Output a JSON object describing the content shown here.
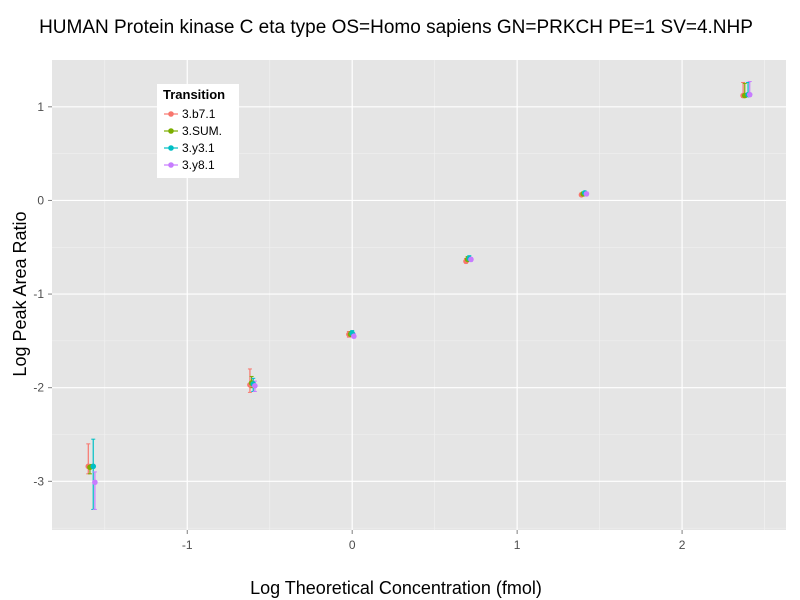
{
  "chart_data": {
    "type": "scatter",
    "title": "HUMAN Protein kinase C eta type OS=Homo sapiens GN=PRKCH PE=1 SV=4.NHP",
    "xlabel": "Log Theoretical Concentration (fmol)",
    "ylabel": "Log Peak Area Ratio",
    "xlim": [
      -1.82,
      2.63
    ],
    "ylim": [
      -3.52,
      1.5
    ],
    "x_ticks": [
      -1,
      0,
      1,
      2
    ],
    "y_ticks": [
      -3,
      -2,
      -1,
      0,
      1
    ],
    "x_tick_labels": [
      "-1",
      "0",
      "1",
      "2"
    ],
    "y_tick_labels": [
      "-3",
      "-2",
      "-1",
      "0",
      "1"
    ],
    "grid": true,
    "error_bars": true,
    "legend": {
      "title": "Transition",
      "position": "top-left"
    },
    "series": [
      {
        "name": "3.b7.1",
        "color": "#F8766D",
        "points": [
          {
            "x": -1.6,
            "y": -2.84,
            "lo": -2.92,
            "hi": -2.6
          },
          {
            "x": -0.62,
            "y": -1.97,
            "lo": -2.05,
            "hi": -1.8
          },
          {
            "x": -0.02,
            "y": -1.43,
            "lo": -1.46,
            "hi": -1.4
          },
          {
            "x": 0.69,
            "y": -0.65,
            "lo": -0.67,
            "hi": -0.62
          },
          {
            "x": 1.39,
            "y": 0.06,
            "lo": 0.05,
            "hi": 0.08
          },
          {
            "x": 2.37,
            "y": 1.12,
            "lo": 1.1,
            "hi": 1.26
          }
        ]
      },
      {
        "name": "3.SUM.",
        "color": "#7CAE00",
        "points": [
          {
            "x": -1.59,
            "y": -2.85,
            "lo": -2.92,
            "hi": -2.82
          },
          {
            "x": -0.61,
            "y": -1.95,
            "lo": -2.0,
            "hi": -1.88
          },
          {
            "x": -0.01,
            "y": -1.43,
            "lo": -1.45,
            "hi": -1.4
          },
          {
            "x": 0.7,
            "y": -0.63,
            "lo": -0.65,
            "hi": -0.6
          },
          {
            "x": 1.4,
            "y": 0.07,
            "lo": 0.05,
            "hi": 0.09
          },
          {
            "x": 2.38,
            "y": 1.12,
            "lo": 1.1,
            "hi": 1.25
          }
        ]
      },
      {
        "name": "3.y3.1",
        "color": "#00BFC4",
        "points": [
          {
            "x": -1.57,
            "y": -2.84,
            "lo": -3.3,
            "hi": -2.55
          },
          {
            "x": -0.6,
            "y": -1.96,
            "lo": -2.04,
            "hi": -1.9
          },
          {
            "x": 0.0,
            "y": -1.42,
            "lo": -1.45,
            "hi": -1.39
          },
          {
            "x": 0.71,
            "y": -0.62,
            "lo": -0.64,
            "hi": -0.59
          },
          {
            "x": 1.41,
            "y": 0.08,
            "lo": 0.06,
            "hi": 0.1
          },
          {
            "x": 2.4,
            "y": 1.13,
            "lo": 1.11,
            "hi": 1.26
          }
        ]
      },
      {
        "name": "3.y8.1",
        "color": "#C77CFF",
        "points": [
          {
            "x": -1.56,
            "y": -3.01,
            "lo": -3.3,
            "hi": -2.9
          },
          {
            "x": -0.59,
            "y": -1.98,
            "lo": -2.04,
            "hi": -1.93
          },
          {
            "x": 0.01,
            "y": -1.45,
            "lo": -1.47,
            "hi": -1.42
          },
          {
            "x": 0.72,
            "y": -0.63,
            "lo": -0.65,
            "hi": -0.61
          },
          {
            "x": 1.42,
            "y": 0.07,
            "lo": 0.05,
            "hi": 0.09
          },
          {
            "x": 2.41,
            "y": 1.13,
            "lo": 1.11,
            "hi": 1.27
          }
        ]
      }
    ]
  }
}
